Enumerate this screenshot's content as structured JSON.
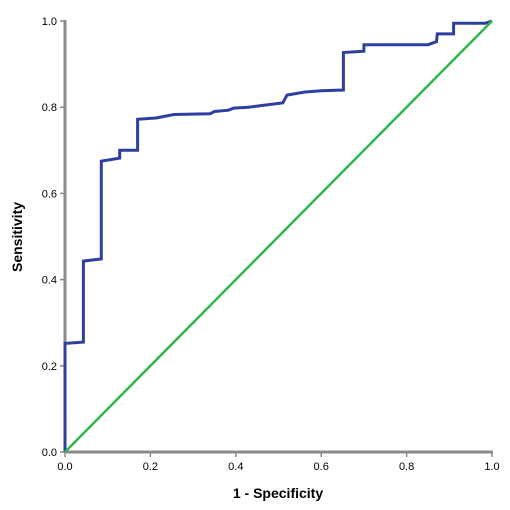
{
  "chart_data": {
    "type": "line",
    "title": "",
    "xlabel": "1 - Specificity",
    "ylabel": "Sensitivity",
    "xlim": [
      0.0,
      1.0
    ],
    "ylim": [
      0.0,
      1.0
    ],
    "x_ticks": [
      "0.0",
      "0.2",
      "0.4",
      "0.6",
      "0.8",
      "1.0"
    ],
    "y_ticks": [
      "0.0",
      "0.2",
      "0.4",
      "0.6",
      "0.8",
      "1.0"
    ],
    "grid": false,
    "legend": "none",
    "series": [
      {
        "color": "#2e3fa0",
        "points": [
          [
            0.0,
            0.0
          ],
          [
            0.0,
            0.252
          ],
          [
            0.043,
            0.255
          ],
          [
            0.043,
            0.443
          ],
          [
            0.085,
            0.448
          ],
          [
            0.085,
            0.675
          ],
          [
            0.128,
            0.682
          ],
          [
            0.128,
            0.7
          ],
          [
            0.17,
            0.7
          ],
          [
            0.17,
            0.772
          ],
          [
            0.213,
            0.775
          ],
          [
            0.255,
            0.783
          ],
          [
            0.34,
            0.785
          ],
          [
            0.35,
            0.79
          ],
          [
            0.383,
            0.793
          ],
          [
            0.395,
            0.798
          ],
          [
            0.43,
            0.8
          ],
          [
            0.51,
            0.81
          ],
          [
            0.52,
            0.828
          ],
          [
            0.56,
            0.835
          ],
          [
            0.6,
            0.838
          ],
          [
            0.652,
            0.84
          ],
          [
            0.652,
            0.927
          ],
          [
            0.7,
            0.93
          ],
          [
            0.7,
            0.945
          ],
          [
            0.85,
            0.945
          ],
          [
            0.87,
            0.952
          ],
          [
            0.872,
            0.97
          ],
          [
            0.91,
            0.97
          ],
          [
            0.91,
            0.995
          ],
          [
            0.985,
            0.995
          ],
          [
            1.0,
            1.0
          ]
        ]
      },
      {
        "color": "#2db84a",
        "points": [
          [
            0.0,
            0.0
          ],
          [
            1.0,
            1.0
          ]
        ]
      }
    ]
  }
}
